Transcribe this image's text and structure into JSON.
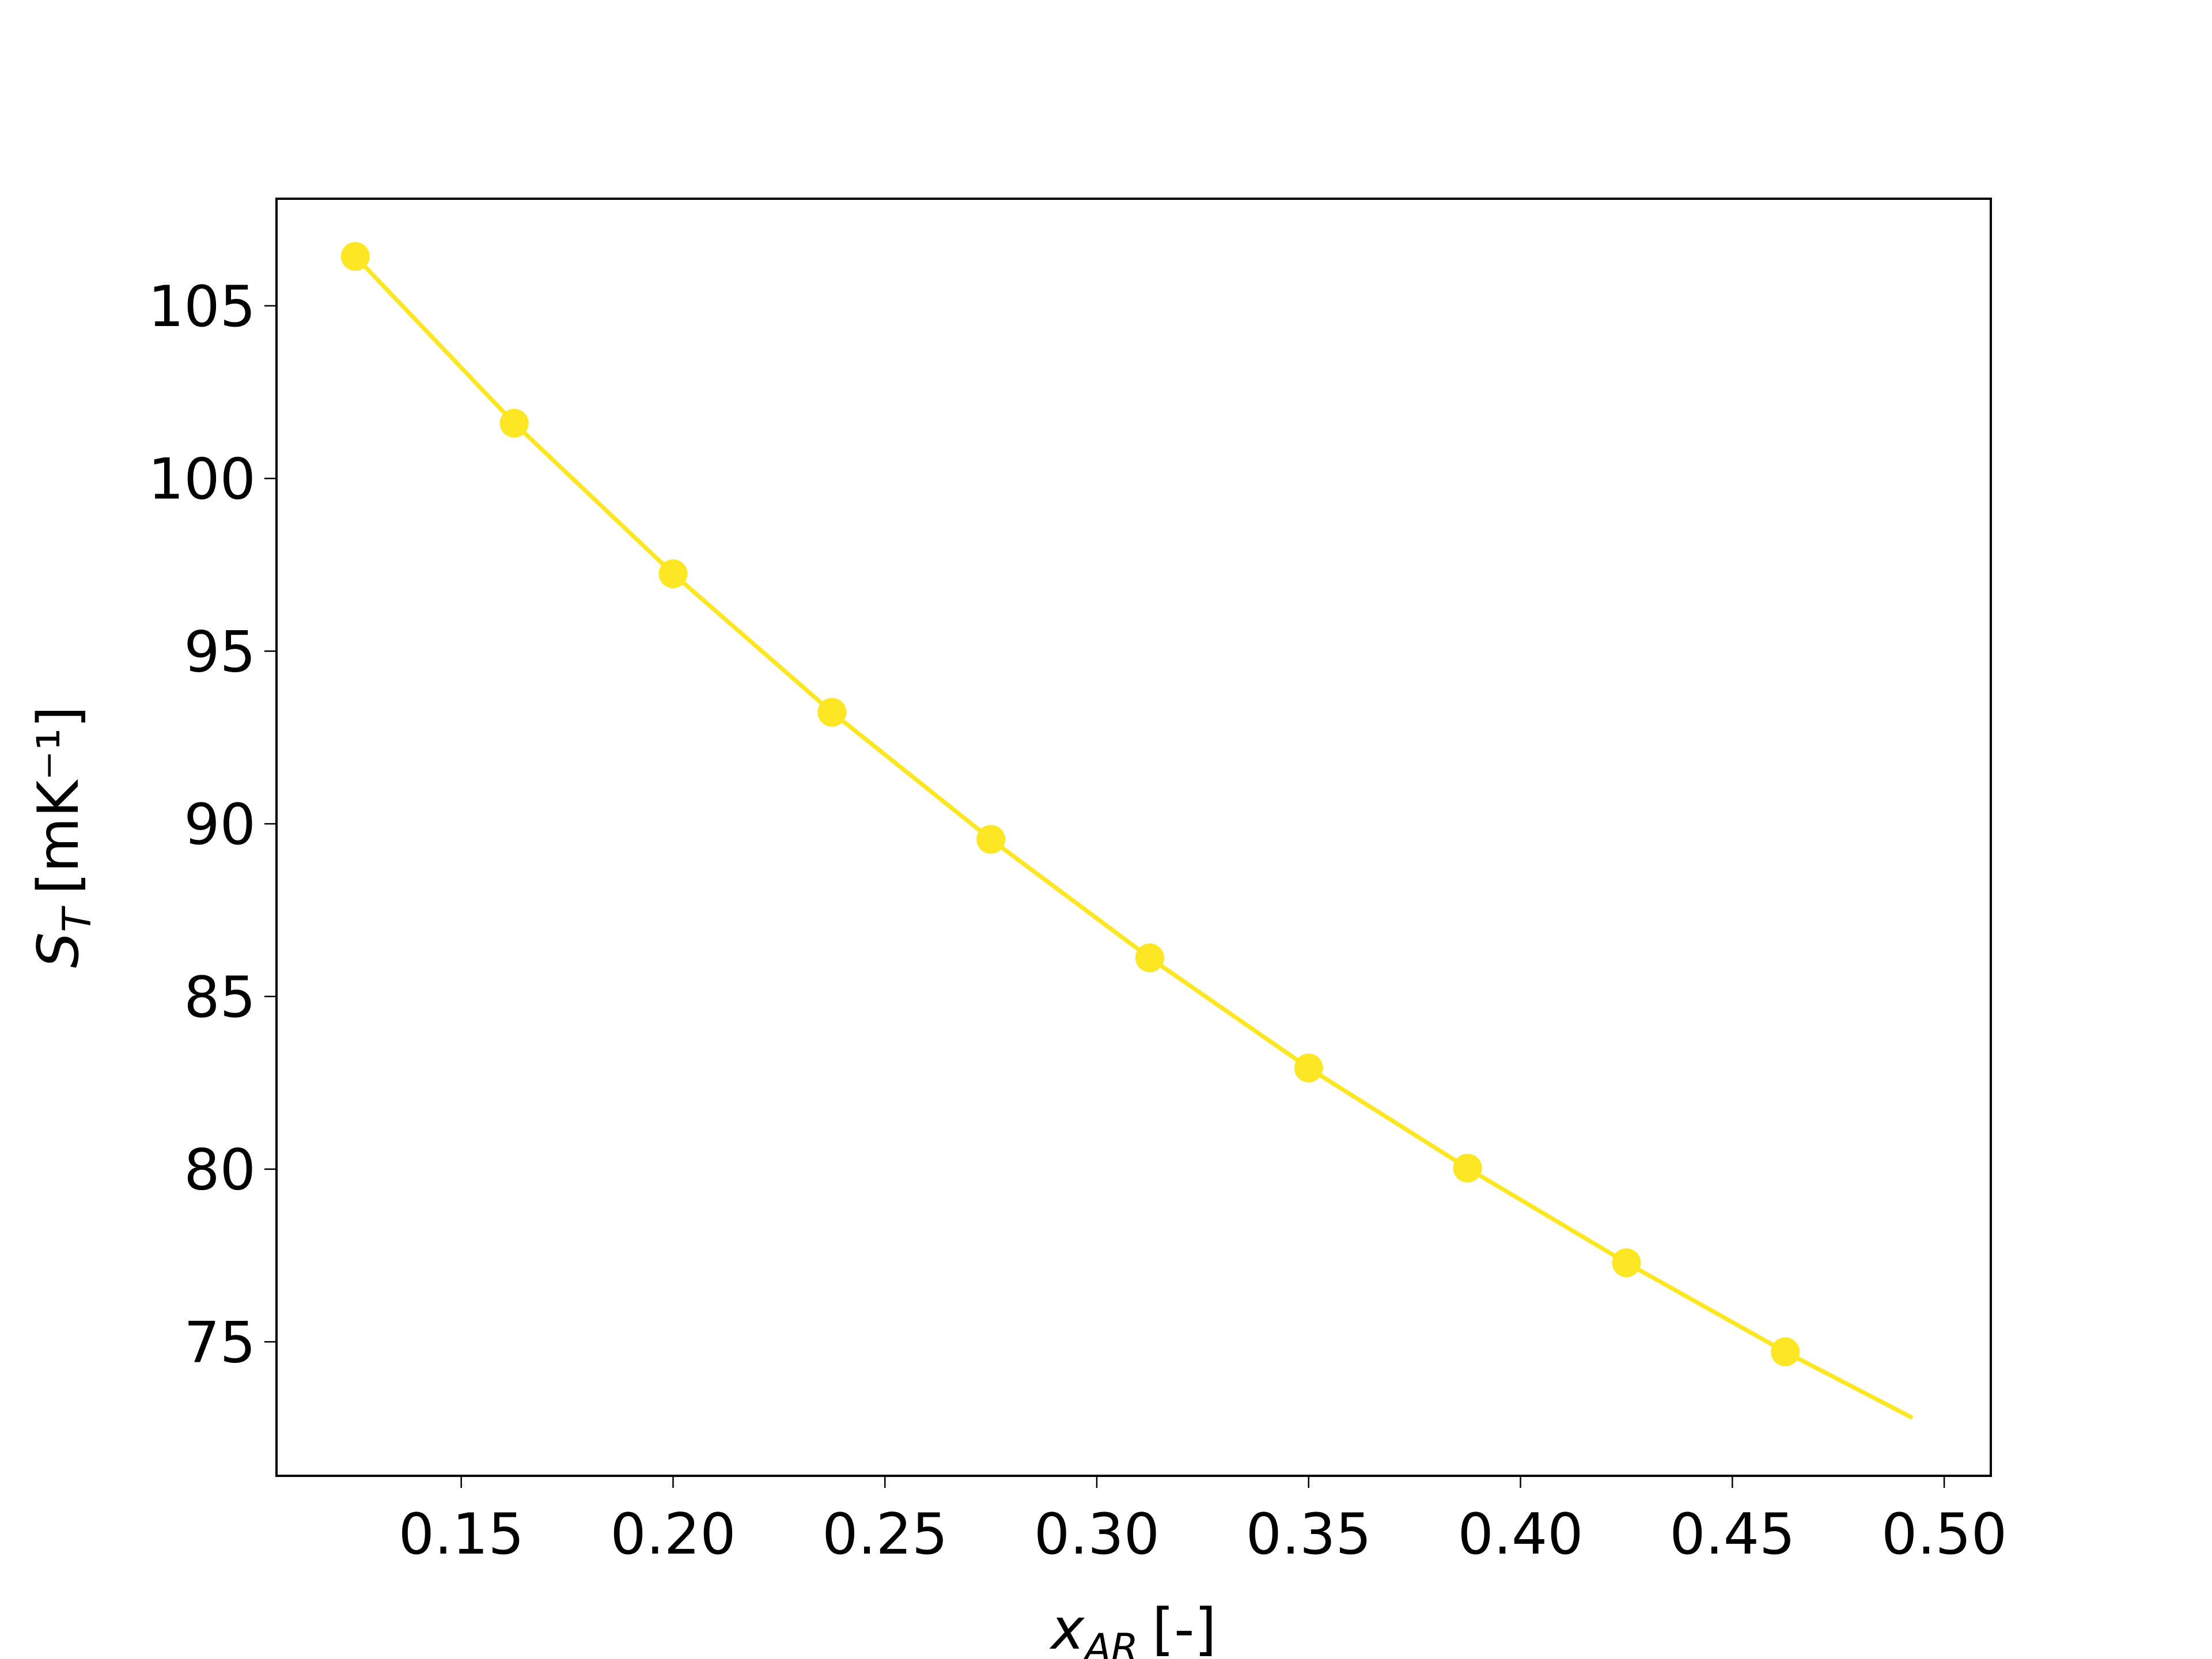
{
  "chart_data": {
    "type": "line",
    "xlabel": {
      "symbol": "x",
      "subscript": "AR",
      "unit": "[-]"
    },
    "ylabel": {
      "symbol": "S",
      "subscript": "T",
      "unit": "[mK⁻¹]"
    },
    "xlim": [
      0.1064,
      0.511
    ],
    "ylim": [
      71.12,
      108.1
    ],
    "xticks": [
      {
        "value": 0.15,
        "label": "0.15"
      },
      {
        "value": 0.2,
        "label": "0.20"
      },
      {
        "value": 0.25,
        "label": "0.25"
      },
      {
        "value": 0.3,
        "label": "0.30"
      },
      {
        "value": 0.35,
        "label": "0.35"
      },
      {
        "value": 0.4,
        "label": "0.40"
      },
      {
        "value": 0.45,
        "label": "0.45"
      },
      {
        "value": 0.5,
        "label": "0.50"
      }
    ],
    "yticks": [
      75,
      80,
      85,
      90,
      95,
      100,
      105
    ],
    "grid": false,
    "series": [
      {
        "color": "#fde725",
        "line": true,
        "marker": false,
        "x": [
          0.125,
          0.1625,
          0.2,
          0.2375,
          0.275,
          0.3125,
          0.35,
          0.3875,
          0.425,
          0.4625,
          0.4925
        ],
        "values": [
          106.43,
          101.6,
          97.24,
          93.23,
          89.55,
          86.12,
          82.93,
          80.03,
          77.29,
          74.71,
          72.8
        ]
      },
      {
        "color": "#fde725",
        "line": false,
        "marker": true,
        "x": [
          0.125,
          0.1625,
          0.2,
          0.2375,
          0.275,
          0.3125,
          0.35,
          0.3875,
          0.425,
          0.4625
        ],
        "values": [
          106.43,
          101.6,
          97.24,
          93.23,
          89.55,
          86.12,
          82.93,
          80.03,
          77.29,
          74.71
        ]
      }
    ]
  }
}
